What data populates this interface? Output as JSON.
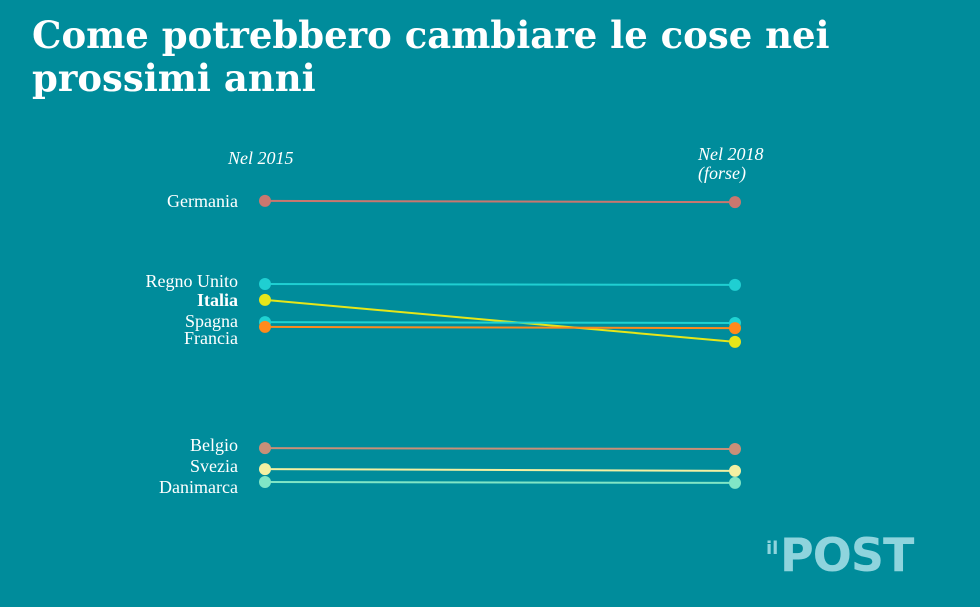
{
  "title": "Come potrebbero cambiare le cose nei prossimi anni",
  "logo": {
    "prefix": "il",
    "name": "POST",
    "color": "#8fd4dd"
  },
  "chart_data": {
    "type": "slope",
    "title": "Come potrebbero cambiare le cose nei prossimi anni",
    "columns": [
      "Nel 2015",
      "Nel 2018 (forse)"
    ],
    "column_header_lines": [
      [
        "Nel 2015"
      ],
      [
        "Nel 2018",
        "(forse)"
      ]
    ],
    "ylim": [
      0,
      100
    ],
    "axis_visible": false,
    "grid": false,
    "series": [
      {
        "name": "Germania",
        "values": [
          99.7,
          99.3
        ],
        "color": "#c9776f",
        "bold": false
      },
      {
        "name": "Regno Unito",
        "values": [
          72,
          71.7
        ],
        "color": "#1fcfd2",
        "bold": false
      },
      {
        "name": "Italia",
        "values": [
          66.7,
          52.7
        ],
        "color": "#e6e619",
        "bold": true
      },
      {
        "name": "Spagna",
        "values": [
          59.3,
          59
        ],
        "color": "#1fd2d2",
        "bold": false
      },
      {
        "name": "Francia",
        "values": [
          57.7,
          57.3
        ],
        "color": "#ff8a1c",
        "bold": false
      },
      {
        "name": "Belgio",
        "values": [
          17.3,
          17
        ],
        "color": "#c98f78",
        "bold": false
      },
      {
        "name": "Svezia",
        "values": [
          10.3,
          9.7
        ],
        "color": "#f3f0a2",
        "bold": false
      },
      {
        "name": "Danimarca",
        "values": [
          6,
          5.7
        ],
        "color": "#80e6c6",
        "bold": false
      }
    ]
  }
}
